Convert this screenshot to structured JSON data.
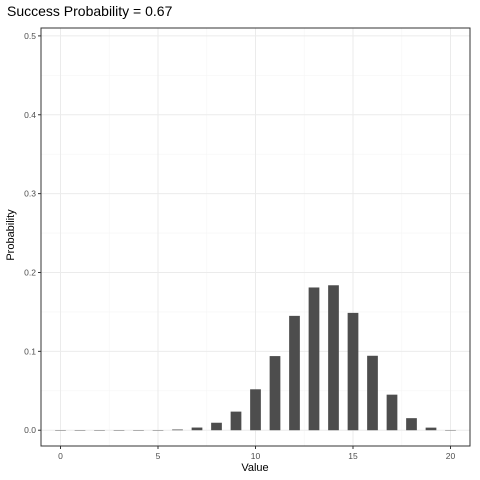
{
  "chart_data": {
    "type": "bar",
    "title": "Success Probability = 0.67",
    "xlabel": "Value",
    "ylabel": "Probability",
    "x": [
      0,
      1,
      2,
      3,
      4,
      5,
      6,
      7,
      8,
      9,
      10,
      11,
      12,
      13,
      14,
      15,
      16,
      17,
      18,
      19,
      20
    ],
    "values": [
      0.0,
      0.0,
      0.0,
      0.0,
      0.0,
      0.0002,
      0.0009,
      0.0034,
      0.0095,
      0.0236,
      0.0519,
      0.094,
      0.145,
      0.181,
      0.1838,
      0.1488,
      0.0944,
      0.0451,
      0.0153,
      0.0033,
      0.0003
    ],
    "xlim": [
      -1,
      21
    ],
    "ylim": [
      -0.02,
      0.51
    ],
    "x_ticks": [
      0,
      5,
      10,
      15,
      20
    ],
    "y_ticks": [
      0.0,
      0.1,
      0.2,
      0.3,
      0.4,
      0.5
    ],
    "y_tick_labels": [
      "0.0",
      "0.1",
      "0.2",
      "0.3",
      "0.4",
      "0.5"
    ],
    "grid": true,
    "colors": {
      "bar": "#4d4d4d",
      "grid_major": "#ebebeb",
      "grid_minor": "#f5f5f5",
      "panel_border": "#333333",
      "tick_label": "#4d4d4d"
    }
  }
}
